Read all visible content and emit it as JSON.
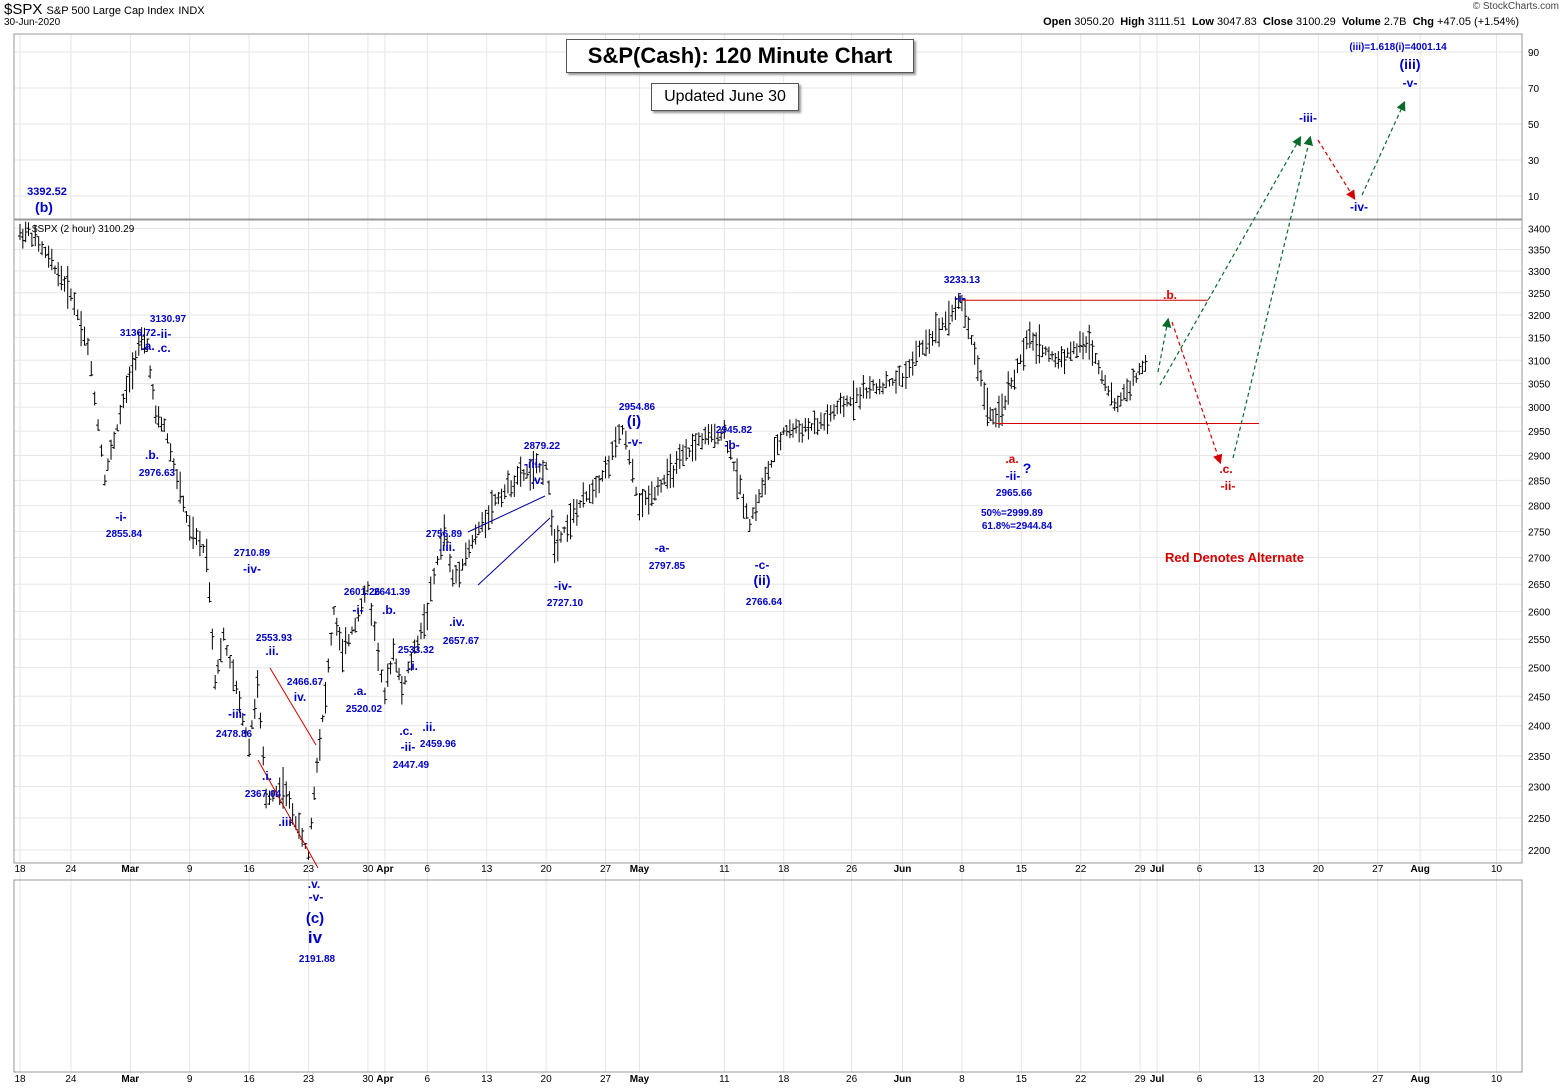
{
  "header": {
    "symbol": "$SPX",
    "name": "S&P 500 Large Cap Index",
    "exchange": "INDX",
    "date": "30-Jun-2020",
    "open_label": "Open",
    "open": "3050.20",
    "high_label": "High",
    "high": "3111.51",
    "low_label": "Low",
    "low": "3047.83",
    "close_label": "Close",
    "close": "3100.29",
    "volume_label": "Volume",
    "volume": "2.7B",
    "chg_label": "Chg",
    "chg": "+47.05 (+1.54%)",
    "credit": "© StockCharts.com",
    "legend": "$SPX (2 hour) 3100.29"
  },
  "title": "S&P(Cash): 120 Minute Chart",
  "subtitle": "Updated June 30",
  "alternate_note": "Red Denotes Alternate",
  "colors": {
    "wave": "#0000c8",
    "alt": "#d40000",
    "projection": "#0a6a2a",
    "bars": "#000000",
    "grid": "#e6e6e6"
  },
  "chart_data": {
    "type": "ohlc",
    "yscale": "log",
    "ylim": [
      2180,
      3420
    ],
    "yticks": [
      2200,
      2250,
      2300,
      2350,
      2400,
      2450,
      2500,
      2550,
      2600,
      2650,
      2700,
      2750,
      2800,
      2850,
      2900,
      2950,
      3000,
      3050,
      3100,
      3150,
      3200,
      3250,
      3300,
      3350,
      3400
    ],
    "upper_ticks": [
      "90",
      "70",
      "50",
      "30",
      "10"
    ],
    "xaxis_labels": [
      "18",
      "24",
      "Mar",
      "9",
      "16",
      "23",
      "30",
      "Apr",
      "6",
      "13",
      "20",
      "27",
      "May",
      "11",
      "18",
      "26",
      "Jun",
      "8",
      "15",
      "22",
      "29",
      "Jul",
      "6",
      "13",
      "20",
      "27",
      "Aug",
      "10"
    ],
    "price_path": [
      [
        "2020-02-18",
        3385
      ],
      [
        "2020-02-19",
        3392.52
      ],
      [
        "2020-02-21",
        3340
      ],
      [
        "2020-02-24",
        3250
      ],
      [
        "2020-02-26",
        3130
      ],
      [
        "2020-02-28",
        2855.84
      ],
      [
        "2020-03-03",
        3136.72
      ],
      [
        "2020-03-04",
        3130.97
      ],
      [
        "2020-03-05",
        2976.63
      ],
      [
        "2020-03-06",
        2960
      ],
      [
        "2020-03-09",
        2750
      ],
      [
        "2020-03-11",
        2710.89
      ],
      [
        "2020-03-12",
        2478.86
      ],
      [
        "2020-03-13",
        2553.93
      ],
      [
        "2020-03-16",
        2367.04
      ],
      [
        "2020-03-17",
        2466.67
      ],
      [
        "2020-03-18",
        2280
      ],
      [
        "2020-03-20",
        2300
      ],
      [
        "2020-03-23",
        2191.88
      ],
      [
        "2020-03-24",
        2340
      ],
      [
        "2020-03-25",
        2450
      ],
      [
        "2020-03-26",
        2601.26
      ],
      [
        "2020-03-27",
        2520.02
      ],
      [
        "2020-03-30",
        2641.39
      ],
      [
        "2020-04-01",
        2447.49
      ],
      [
        "2020-04-02",
        2533.32
      ],
      [
        "2020-04-03",
        2459.96
      ],
      [
        "2020-04-06",
        2600
      ],
      [
        "2020-04-08",
        2756.89
      ],
      [
        "2020-04-09",
        2657.67
      ],
      [
        "2020-04-14",
        2810
      ],
      [
        "2020-04-17",
        2860
      ],
      [
        "2020-04-20",
        2879.22
      ],
      [
        "2020-04-21",
        2727.1
      ],
      [
        "2020-04-24",
        2800
      ],
      [
        "2020-04-27",
        2870
      ],
      [
        "2020-04-29",
        2954.86
      ],
      [
        "2020-05-01",
        2797.85
      ],
      [
        "2020-05-05",
        2870
      ],
      [
        "2020-05-08",
        2930
      ],
      [
        "2020-05-11",
        2945.82
      ],
      [
        "2020-05-14",
        2766.64
      ],
      [
        "2020-05-18",
        2950
      ],
      [
        "2020-05-22",
        2960
      ],
      [
        "2020-05-27",
        3030
      ],
      [
        "2020-06-01",
        3060
      ],
      [
        "2020-06-03",
        3120
      ],
      [
        "2020-06-08",
        3233.13
      ],
      [
        "2020-06-11",
        3000
      ],
      [
        "2020-06-12",
        2965.66
      ],
      [
        "2020-06-16",
        3150
      ],
      [
        "2020-06-19",
        3100
      ],
      [
        "2020-06-23",
        3140
      ],
      [
        "2020-06-26",
        3000
      ],
      [
        "2020-06-30",
        3100.29
      ]
    ],
    "horizontal_lines": [
      {
        "price": 3233.13,
        "from": "2020-06-08",
        "to": "2020-07-07"
      },
      {
        "price": 2965.66,
        "from": "2020-06-12",
        "to": "2020-07-13"
      }
    ],
    "projection_primary": [
      [
        "2020-06-30",
        3100
      ],
      [
        "2020-07-21",
        "-iii-"
      ],
      [
        "2020-07-24",
        "-iv-"
      ],
      [
        "2020-07-30",
        "-v-"
      ]
    ],
    "projection_alternate": [
      [
        "2020-06-30",
        3100
      ],
      [
        "2020-07-02",
        3210
      ],
      [
        "2020-07-10",
        2960
      ],
      [
        "2020-07-21",
        "-iii-"
      ]
    ],
    "annotations": [
      "3392.52",
      "(b)",
      "3136.72",
      ".a.",
      "3130.97",
      "-ii-",
      ".c.",
      ".b.",
      "2976.63",
      "-i-",
      "2855.84",
      "2710.89",
      "-iv-",
      "2553.93",
      ".ii.",
      "2466.67",
      "iv.",
      "-iii-",
      "2478.86",
      ".i.",
      "2367.04",
      ".iii",
      ".v.",
      "-v-",
      "(c)",
      "iv",
      "2191.88",
      "2601.26",
      "-i-",
      "2641.39",
      ".b.",
      ".a.",
      "2520.02",
      "2533.32",
      ".i.",
      ".c.",
      "-ii-",
      "2447.49",
      ".ii.",
      "2459.96",
      "2756.89",
      ".iii.",
      ".iv.",
      "2657.67",
      "2879.22",
      "-iii-",
      ".v.",
      "-iv-",
      "2727.10",
      "2954.86",
      "(i)",
      "-v-",
      "-a-",
      "2797.85",
      "2945.82",
      "-b-",
      "-c-",
      "(ii)",
      "2766.64",
      "3233.13",
      "-i-",
      ".a.",
      "-ii-",
      "?",
      "2965.66",
      "50%=2999.89",
      "61.8%=2944.84",
      ".b.",
      ".c.",
      "-ii-",
      "-iii-",
      "-iv-",
      "(iii)=1.618(i)=4001.14",
      "(iii)",
      "-v-"
    ]
  }
}
